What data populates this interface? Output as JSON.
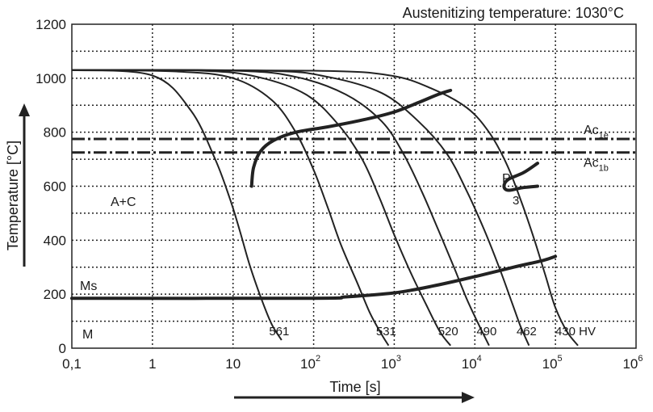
{
  "chart_data": {
    "type": "line",
    "title": "Austenitizing temperature: 1030°C",
    "xlabel": "Time [s]",
    "ylabel": "Temperature [°C]",
    "xscale": "log",
    "xlim": [
      0.1,
      1000000
    ],
    "ylim": [
      0,
      1200
    ],
    "x_ticks": [
      {
        "base": "0,1",
        "sup": ""
      },
      {
        "base": "1",
        "sup": ""
      },
      {
        "base": "10",
        "sup": ""
      },
      {
        "base": "10",
        "sup": "2"
      },
      {
        "base": "10",
        "sup": "3"
      },
      {
        "base": "10",
        "sup": "4"
      },
      {
        "base": "10",
        "sup": "5"
      },
      {
        "base": "10",
        "sup": "6"
      }
    ],
    "y_ticks": [
      "0",
      "200",
      "400",
      "600",
      "800",
      "1000",
      "1200"
    ],
    "grid": true,
    "reference_lines": [
      {
        "base": "Ac",
        "sub": "1e",
        "y": 775
      },
      {
        "base": "Ac",
        "sub": "1b",
        "y": 725
      }
    ],
    "region_labels": [
      "A+C",
      "Ms",
      "M"
    ],
    "pearlite_label": "P",
    "pearlite_value": "3",
    "hardness_unit": "HV",
    "cooling_curves": [
      {
        "hardness": "561",
        "points": [
          [
            0.1,
            1030
          ],
          [
            1,
            1010
          ],
          [
            3,
            880
          ],
          [
            6,
            700
          ],
          [
            9,
            560
          ],
          [
            12,
            440
          ],
          [
            16,
            310
          ],
          [
            22,
            190
          ],
          [
            30,
            90
          ],
          [
            40,
            30
          ]
        ]
      },
      {
        "hardness": "531",
        "points": [
          [
            0.1,
            1030
          ],
          [
            2,
            1025
          ],
          [
            10,
            1000
          ],
          [
            30,
            920
          ],
          [
            60,
            800
          ],
          [
            100,
            660
          ],
          [
            150,
            520
          ],
          [
            220,
            380
          ],
          [
            350,
            240
          ],
          [
            500,
            130
          ],
          [
            700,
            50
          ],
          [
            850,
            10
          ]
        ]
      },
      {
        "hardness": "520",
        "points": [
          [
            0.1,
            1030
          ],
          [
            4,
            1028
          ],
          [
            20,
            1005
          ],
          [
            80,
            940
          ],
          [
            200,
            830
          ],
          [
            400,
            700
          ],
          [
            650,
            560
          ],
          [
            1000,
            420
          ],
          [
            1600,
            280
          ],
          [
            2500,
            160
          ],
          [
            3700,
            60
          ],
          [
            5000,
            10
          ]
        ]
      },
      {
        "hardness": "490",
        "points": [
          [
            0.1,
            1030
          ],
          [
            10,
            1028
          ],
          [
            60,
            1005
          ],
          [
            250,
            940
          ],
          [
            700,
            840
          ],
          [
            1300,
            720
          ],
          [
            2200,
            580
          ],
          [
            3500,
            440
          ],
          [
            5500,
            300
          ],
          [
            8000,
            180
          ],
          [
            11500,
            80
          ],
          [
            15000,
            10
          ]
        ]
      },
      {
        "hardness": "462",
        "points": [
          [
            0.1,
            1030
          ],
          [
            25,
            1028
          ],
          [
            150,
            1005
          ],
          [
            700,
            945
          ],
          [
            2000,
            840
          ],
          [
            4500,
            720
          ],
          [
            8000,
            580
          ],
          [
            13000,
            440
          ],
          [
            20000,
            300
          ],
          [
            28000,
            180
          ],
          [
            37000,
            80
          ],
          [
            47000,
            10
          ]
        ]
      },
      {
        "hardness": "430",
        "points": [
          [
            0.1,
            1030
          ],
          [
            100,
            1028
          ],
          [
            900,
            1010
          ],
          [
            3000,
            960
          ],
          [
            8000,
            890
          ],
          [
            15000,
            800
          ],
          [
            25000,
            680
          ],
          [
            38000,
            540
          ],
          [
            55000,
            400
          ],
          [
            75000,
            270
          ],
          [
            100000,
            150
          ],
          [
            140000,
            60
          ],
          [
            190000,
            10
          ]
        ]
      }
    ],
    "transformation_lines": [
      {
        "name": "",
        "points": [
          [
            17,
            600
          ],
          [
            18,
            670
          ],
          [
            22,
            730
          ],
          [
            32,
            770
          ],
          [
            60,
            800
          ],
          [
            150,
            820
          ],
          [
            400,
            845
          ],
          [
            1000,
            875
          ],
          [
            2000,
            910
          ],
          [
            3500,
            940
          ],
          [
            5000,
            955
          ]
        ]
      },
      {
        "name": "",
        "points": [
          [
            0.1,
            185
          ],
          [
            100,
            185
          ],
          [
            250,
            190
          ],
          [
            1000,
            205
          ],
          [
            3000,
            230
          ],
          [
            10000,
            265
          ],
          [
            30000,
            300
          ],
          [
            70000,
            325
          ],
          [
            100000,
            340
          ]
        ]
      },
      {
        "name": "",
        "points": [
          [
            60000,
            685
          ],
          [
            40000,
            650
          ],
          [
            26000,
            625
          ],
          [
            23000,
            600
          ],
          [
            26000,
            585
          ],
          [
            40000,
            595
          ],
          [
            60000,
            600
          ]
        ]
      }
    ]
  }
}
